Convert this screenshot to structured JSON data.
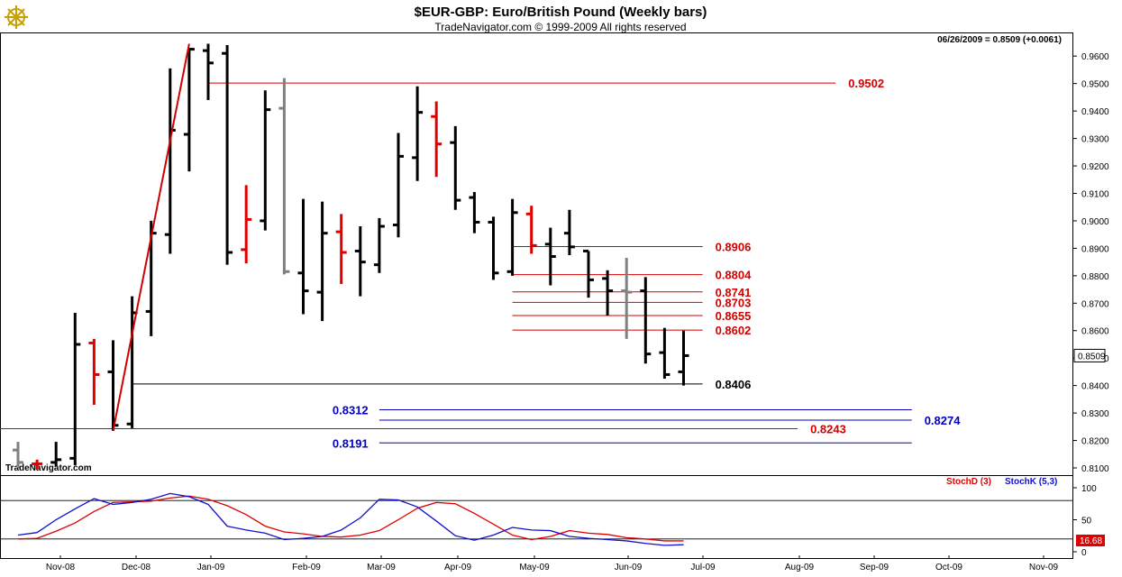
{
  "header": {
    "title": "$EUR-GBP:  Euro/British Pound  (Weekly bars)",
    "subtitle": "TradeNavigator.com © 1999-2009 All rights reserved",
    "quote": "06/26/2009 = 0.8509 (+0.0061)",
    "watermark": "TradeNavigator.com",
    "last_price_tag": "0.8509",
    "logo_icon": "ship-wheel-icon"
  },
  "colors": {
    "up_bar": "#000000",
    "down_bar": "#e00000",
    "neutral_bar": "#808080",
    "resistance": "#d40000",
    "support_blue": "#0000c0",
    "stoch_d": "#e00000",
    "stoch_k": "#1010d0"
  },
  "chart_data": [
    {
      "type": "ohlc",
      "title": "$EUR-GBP:  Euro/British Pound  (Weekly bars)",
      "ylim": [
        0.81,
        0.965
      ],
      "y_ticks": [
        "0.9600",
        "0.9500",
        "0.9400",
        "0.9300",
        "0.9200",
        "0.9100",
        "0.9000",
        "0.8900",
        "0.8800",
        "0.8700",
        "0.8600",
        "0.8500",
        "0.8400",
        "0.8300",
        "0.8200",
        "0.8100"
      ],
      "x_ticks": [
        "Nov-08",
        "Dec-08",
        "Jan-09",
        "Feb-09",
        "Mar-09",
        "Apr-09",
        "May-09",
        "Jun-09",
        "Jul-09",
        "Aug-09",
        "Sep-09",
        "Oct-09",
        "Nov-09"
      ],
      "bars": [
        {
          "o": 0.8165,
          "h": 0.8195,
          "l": 0.81,
          "c": 0.812,
          "color": "neutral"
        },
        {
          "o": 0.8115,
          "h": 0.813,
          "l": 0.8095,
          "c": 0.8115,
          "color": "down"
        },
        {
          "o": 0.812,
          "h": 0.8195,
          "l": 0.8105,
          "c": 0.813,
          "color": "up"
        },
        {
          "o": 0.8135,
          "h": 0.8665,
          "l": 0.811,
          "c": 0.855,
          "color": "up"
        },
        {
          "o": 0.8555,
          "h": 0.857,
          "l": 0.833,
          "c": 0.844,
          "color": "down"
        },
        {
          "o": 0.845,
          "h": 0.8565,
          "l": 0.8235,
          "c": 0.8255,
          "color": "up"
        },
        {
          "o": 0.826,
          "h": 0.8725,
          "l": 0.8245,
          "c": 0.8665,
          "color": "up"
        },
        {
          "o": 0.867,
          "h": 0.9,
          "l": 0.858,
          "c": 0.8955,
          "color": "up"
        },
        {
          "o": 0.895,
          "h": 0.9555,
          "l": 0.888,
          "c": 0.933,
          "color": "up"
        },
        {
          "o": 0.9315,
          "h": 0.963,
          "l": 0.918,
          "c": 0.9625,
          "color": "up"
        },
        {
          "o": 0.962,
          "h": 0.9645,
          "l": 0.944,
          "c": 0.9575,
          "color": "up"
        },
        {
          "o": 0.961,
          "h": 0.964,
          "l": 0.884,
          "c": 0.8885,
          "color": "up"
        },
        {
          "o": 0.8895,
          "h": 0.913,
          "l": 0.8845,
          "c": 0.9005,
          "color": "down"
        },
        {
          "o": 0.9,
          "h": 0.9475,
          "l": 0.8965,
          "c": 0.9405,
          "color": "up"
        },
        {
          "o": 0.941,
          "h": 0.952,
          "l": 0.8805,
          "c": 0.8815,
          "color": "neutral"
        },
        {
          "o": 0.881,
          "h": 0.908,
          "l": 0.866,
          "c": 0.8745,
          "color": "up"
        },
        {
          "o": 0.874,
          "h": 0.907,
          "l": 0.8635,
          "c": 0.8955,
          "color": "up"
        },
        {
          "o": 0.896,
          "h": 0.9025,
          "l": 0.877,
          "c": 0.8885,
          "color": "down"
        },
        {
          "o": 0.889,
          "h": 0.898,
          "l": 0.8725,
          "c": 0.885,
          "color": "up"
        },
        {
          "o": 0.884,
          "h": 0.901,
          "l": 0.881,
          "c": 0.898,
          "color": "up"
        },
        {
          "o": 0.8985,
          "h": 0.932,
          "l": 0.894,
          "c": 0.9235,
          "color": "up"
        },
        {
          "o": 0.923,
          "h": 0.949,
          "l": 0.9145,
          "c": 0.9395,
          "color": "up"
        },
        {
          "o": 0.938,
          "h": 0.9435,
          "l": 0.916,
          "c": 0.928,
          "color": "down"
        },
        {
          "o": 0.9285,
          "h": 0.9345,
          "l": 0.904,
          "c": 0.9075,
          "color": "up"
        },
        {
          "o": 0.9085,
          "h": 0.9105,
          "l": 0.8955,
          "c": 0.8995,
          "color": "up"
        },
        {
          "o": 0.8995,
          "h": 0.9015,
          "l": 0.8785,
          "c": 0.881,
          "color": "up"
        },
        {
          "o": 0.8815,
          "h": 0.908,
          "l": 0.88,
          "c": 0.903,
          "color": "up"
        },
        {
          "o": 0.9025,
          "h": 0.9055,
          "l": 0.888,
          "c": 0.891,
          "color": "down"
        },
        {
          "o": 0.8915,
          "h": 0.8975,
          "l": 0.8765,
          "c": 0.887,
          "color": "up"
        },
        {
          "o": 0.8955,
          "h": 0.904,
          "l": 0.8875,
          "c": 0.8905,
          "color": "up"
        },
        {
          "o": 0.889,
          "h": 0.889,
          "l": 0.872,
          "c": 0.8785,
          "color": "up"
        },
        {
          "o": 0.879,
          "h": 0.882,
          "l": 0.8655,
          "c": 0.8745,
          "color": "up"
        },
        {
          "o": 0.8745,
          "h": 0.8865,
          "l": 0.857,
          "c": 0.874,
          "color": "neutral"
        },
        {
          "o": 0.8745,
          "h": 0.8795,
          "l": 0.848,
          "c": 0.8515,
          "color": "up"
        },
        {
          "o": 0.852,
          "h": 0.861,
          "l": 0.8425,
          "c": 0.844,
          "color": "up"
        },
        {
          "o": 0.845,
          "h": 0.86,
          "l": 0.84,
          "c": 0.8509,
          "color": "up"
        }
      ],
      "trendline": {
        "from": {
          "bar": 5,
          "price": 0.8235
        },
        "to": {
          "bar": 9,
          "price": 0.9645
        },
        "color": "#d40000"
      },
      "levels": [
        {
          "value": 0.9502,
          "label": "0.9502",
          "color": "#d40000",
          "from_bar": 10,
          "to_bar": 43
        },
        {
          "value": 0.8906,
          "label": "0.8906",
          "color": "#d40000",
          "from_bar": 26,
          "to_bar": 36
        },
        {
          "value": 0.8804,
          "label": "0.8804",
          "color": "#d40000",
          "from_bar": 26,
          "to_bar": 36
        },
        {
          "value": 0.8741,
          "label": "0.8741",
          "color": "#d40000",
          "from_bar": 26,
          "to_bar": 36
        },
        {
          "value": 0.8703,
          "label": "0.8703",
          "color": "#d40000",
          "from_bar": 26,
          "to_bar": 36
        },
        {
          "value": 0.8655,
          "label": "0.8655",
          "color": "#d40000",
          "from_bar": 26,
          "to_bar": 36
        },
        {
          "value": 0.8602,
          "label": "0.8602",
          "color": "#d40000",
          "from_bar": 26,
          "to_bar": 36
        },
        {
          "value": 0.8406,
          "label": "0.8406",
          "color": "#000000",
          "from_bar": 6,
          "to_bar": 36
        },
        {
          "value": 0.8312,
          "label": "0.8312",
          "color": "#0000c0",
          "from_bar": 19,
          "to_bar": 47,
          "label_side": "left"
        },
        {
          "value": 0.8274,
          "label": "0.8274",
          "color": "#0000c0",
          "from_bar": 19,
          "to_bar": 47
        },
        {
          "value": 0.8243,
          "label": "0.8243",
          "color": "#d40000",
          "from_bar": -1,
          "to_bar": 41
        },
        {
          "value": 0.8191,
          "label": "0.8191",
          "color": "#0000c0",
          "from_bar": 19,
          "to_bar": 47,
          "label_side": "left"
        }
      ]
    },
    {
      "type": "line",
      "title": "",
      "ylim": [
        0,
        100
      ],
      "y_ticks": [
        "100",
        "50",
        "0"
      ],
      "guides": [
        80,
        20
      ],
      "last_value_label": "16.68",
      "series": [
        {
          "name": "StochD (3)",
          "color": "#e00000",
          "values": [
            20,
            21,
            32,
            45,
            63,
            77,
            78,
            79,
            84,
            87,
            82,
            72,
            58,
            40,
            31,
            28,
            24,
            23,
            26,
            33,
            50,
            68,
            77,
            75,
            60,
            43,
            26,
            19,
            24,
            33,
            29,
            27,
            22,
            20,
            17,
            17
          ]
        },
        {
          "name": "StochK (5,3)",
          "color": "#1010d0",
          "values": [
            26,
            30,
            50,
            67,
            83,
            74,
            77,
            82,
            91,
            86,
            74,
            40,
            34,
            29,
            19,
            21,
            24,
            34,
            53,
            82,
            81,
            70,
            48,
            25,
            18,
            26,
            38,
            34,
            33,
            24,
            21,
            19,
            17,
            13,
            10,
            11
          ]
        }
      ]
    }
  ]
}
